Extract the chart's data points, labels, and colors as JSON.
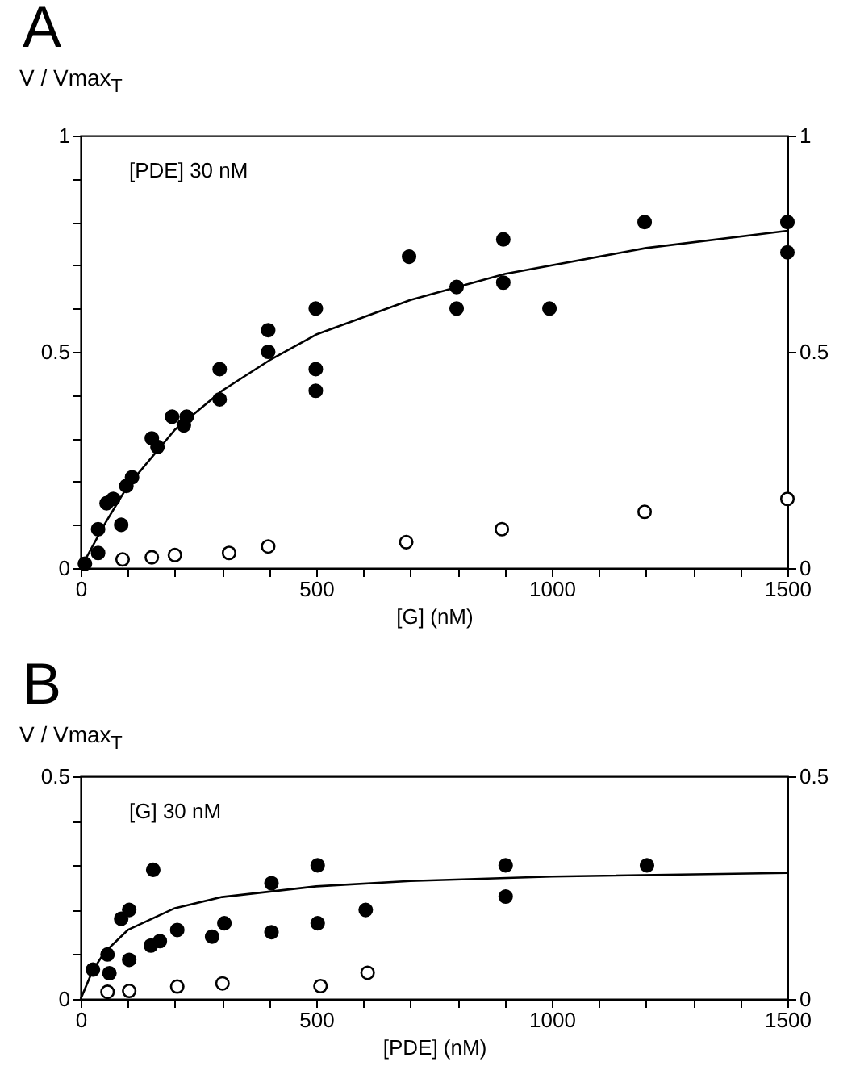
{
  "chart_data": [
    {
      "type": "scatter",
      "title": "A",
      "ylabel": "V / Vmax$_{T}$",
      "xlabel": "[G] (nM)",
      "annotations": [
        "[PDE] 30 nM"
      ],
      "xlim": [
        0,
        1500
      ],
      "xticks": [
        0,
        {
          "value": 100,
          "label": null
        },
        {
          "value": 200,
          "label": null
        },
        {
          "value": 300,
          "label": null
        },
        {
          "value": 400,
          "label": null
        },
        500,
        {
          "value": 600,
          "label": null
        },
        {
          "value": 700,
          "label": null
        },
        {
          "value": 800,
          "label": null
        },
        {
          "value": 900,
          "label": null
        },
        1000,
        {
          "value": 1100,
          "label": null
        },
        {
          "value": 1200,
          "label": null
        },
        {
          "value": 1300,
          "label": null
        },
        {
          "value": 1400,
          "label": null
        },
        1500
      ],
      "ylim": [
        0,
        1
      ],
      "yticks": [
        0,
        {
          "value": 0.1,
          "label": null
        },
        {
          "value": 0.2,
          "label": null
        },
        {
          "value": 0.3,
          "label": null
        },
        {
          "value": 0.4,
          "label": null
        },
        0.5,
        {
          "value": 0.6,
          "label": null
        },
        {
          "value": 0.7,
          "label": null
        },
        {
          "value": 0.8,
          "label": null
        },
        {
          "value": 0.9,
          "label": null
        },
        1
      ],
      "y2lim": [
        0,
        1
      ],
      "y2ticks": [
        0,
        0.5,
        1
      ],
      "grid": false,
      "series": [
        {
          "marker": "circle",
          "color": "#000000",
          "x": [
            9,
            37,
            37,
            55,
            69,
            86,
            97,
            109,
            151,
            163,
            194,
            219,
            225,
            295,
            295,
            398,
            398,
            499,
            499,
            499,
            697,
            798,
            798,
            897,
            897,
            995,
            1197,
            1500,
            1500
          ],
          "values": [
            0.01,
            0.035,
            0.09,
            0.15,
            0.16,
            0.1,
            0.19,
            0.21,
            0.3,
            0.28,
            0.35,
            0.33,
            0.35,
            0.46,
            0.39,
            0.55,
            0.5,
            0.6,
            0.46,
            0.41,
            0.72,
            0.65,
            0.6,
            0.76,
            0.66,
            0.6,
            0.8,
            0.8,
            0.73
          ]
        },
        {
          "marker": "circle",
          "color": "#ffffff",
          "x": [
            89,
            151,
            200,
            315,
            398,
            691,
            894,
            1197,
            1500
          ],
          "values": [
            0.02,
            0.025,
            0.03,
            0.035,
            0.05,
            0.06,
            0.09,
            0.13,
            0.16
          ]
        },
        {
          "type": "line",
          "color": "#000000",
          "x": [
            0,
            50,
            100,
            200,
            300,
            400,
            500,
            700,
            900,
            1200,
            1500
          ],
          "values": [
            0,
            0.1,
            0.19,
            0.32,
            0.41,
            0.48,
            0.54,
            0.62,
            0.68,
            0.74,
            0.78
          ]
        }
      ]
    },
    {
      "type": "scatter",
      "title": "B",
      "ylabel": "V / Vmax$_{T}$",
      "xlabel": "[PDE] (nM)",
      "annotations": [
        "[G] 30 nM"
      ],
      "xlim": [
        0,
        1500
      ],
      "xticks": [
        0,
        {
          "value": 100,
          "label": null
        },
        {
          "value": 200,
          "label": null
        },
        {
          "value": 300,
          "label": null
        },
        {
          "value": 400,
          "label": null
        },
        500,
        {
          "value": 600,
          "label": null
        },
        {
          "value": 700,
          "label": null
        },
        {
          "value": 800,
          "label": null
        },
        {
          "value": 900,
          "label": null
        },
        1000,
        {
          "value": 1100,
          "label": null
        },
        {
          "value": 1200,
          "label": null
        },
        {
          "value": 1300,
          "label": null
        },
        {
          "value": 1400,
          "label": null
        },
        1500
      ],
      "ylim": [
        0,
        0.5
      ],
      "yticks": [
        0,
        {
          "value": 0.1,
          "label": null
        },
        {
          "value": 0.2,
          "label": null
        },
        {
          "value": 0.3,
          "label": null
        },
        {
          "value": 0.4,
          "label": null
        },
        0.5
      ],
      "y2lim": [
        0,
        0.5
      ],
      "y2ticks": [
        0,
        0.5
      ],
      "grid": false,
      "series": [
        {
          "marker": "circle",
          "color": "#000000",
          "x": [
            26,
            57,
            61,
            86,
            103,
            103,
            154,
            149,
            168,
            205,
            279,
            305,
            405,
            405,
            503,
            503,
            605,
            902,
            902,
            1202
          ],
          "values": [
            0.066,
            0.1,
            0.058,
            0.18,
            0.2,
            0.088,
            0.29,
            0.12,
            0.13,
            0.155,
            0.14,
            0.17,
            0.26,
            0.15,
            0.3,
            0.17,
            0.2,
            0.3,
            0.23,
            0.3
          ]
        },
        {
          "marker": "circle",
          "color": "#ffffff",
          "x": [
            57,
            103,
            205,
            301,
            509,
            609
          ],
          "values": [
            0.016,
            0.018,
            0.028,
            0.035,
            0.029,
            0.059
          ]
        },
        {
          "type": "line",
          "color": "#000000",
          "x": [
            0,
            25,
            50,
            100,
            200,
            300,
            500,
            700,
            1000,
            1500
          ],
          "values": [
            0,
            0.063,
            0.104,
            0.155,
            0.204,
            0.229,
            0.253,
            0.265,
            0.275,
            0.283
          ]
        }
      ]
    }
  ]
}
